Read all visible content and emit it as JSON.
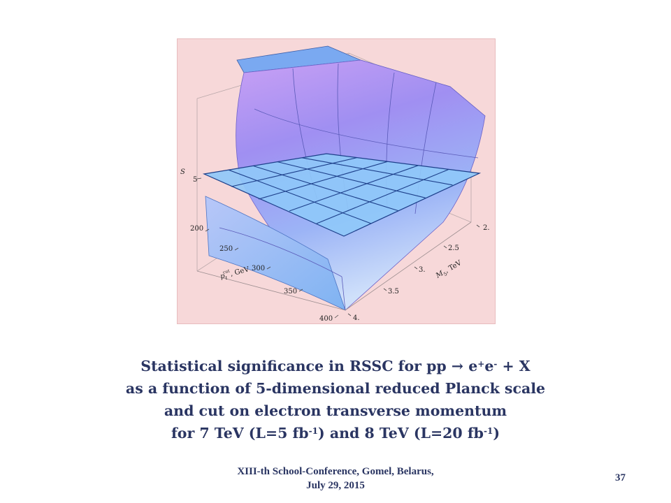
{
  "chart_data": {
    "type": "surface3d",
    "z_axis": {
      "label": "S",
      "ticks": [
        "5"
      ]
    },
    "x_axis": {
      "label_main": "p",
      "label_sub": "t",
      "label_sup": "cut",
      "label_unit": ", GeV",
      "ticks": [
        "200",
        "250",
        "300",
        "350",
        "400"
      ]
    },
    "y_axis": {
      "label_main": "M",
      "label_sub": "5",
      "label_unit": ", TeV",
      "ticks": [
        "2.",
        "2.5",
        "3.",
        "3.5",
        "4."
      ]
    },
    "plane_level": 5,
    "colors": {
      "background": "#f7d8d9",
      "surface_top": "#c39af2",
      "surface_mid": "#9c8ff2",
      "surface_low": "#8fc0f7",
      "plane": "#8fc8f8",
      "plane_edge": "#1d3f8a"
    }
  },
  "caption": {
    "line1_text": "Statistical significance in RSSC for pp → e",
    "line1_sup1": "+",
    "line1_mid": "e",
    "line1_sup2": "-",
    "line1_end": " + X",
    "line2": "as a function of 5-dimensional reduced Planck scale",
    "line3": "and cut on electron transverse momentum",
    "line4_a": "for 7 TeV (L=5 fb",
    "line4_sup1": "-1",
    "line4_b": ") and 8 TeV (L=20 fb",
    "line4_sup2": "-1",
    "line4_c": ")"
  },
  "footer": {
    "line1": "XIII-th School-Conference, Gomel, Belarus,",
    "line2": "July 29, 2015"
  },
  "page_number": "37"
}
